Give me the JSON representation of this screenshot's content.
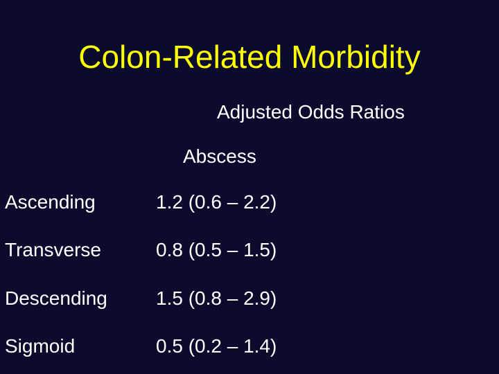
{
  "slide": {
    "title": "Colon-Related Morbidity",
    "subtitle": "Adjusted Odds Ratios",
    "column_header": "Abscess",
    "rows": [
      {
        "label": "Ascending",
        "value": "1.2 (0.6 – 2.2)"
      },
      {
        "label": "Transverse",
        "value": "0.8 (0.5 – 1.5)"
      },
      {
        "label": "Descending",
        "value": "1.5 (0.8 – 2.9)"
      },
      {
        "label": "Sigmoid",
        "value": "0.5 (0.2 – 1.4)"
      }
    ]
  },
  "colors": {
    "background": "#0b0b2e",
    "title": "#ffff00",
    "text": "#ffffff"
  }
}
